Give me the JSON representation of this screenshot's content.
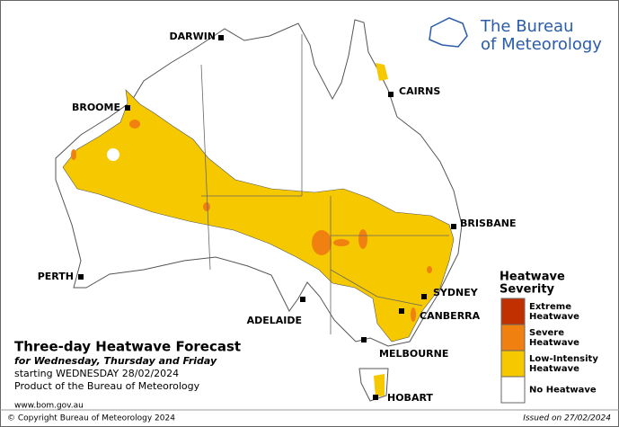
{
  "header": {
    "logo_line1": "The Bureau",
    "logo_line2": "of Meteorology"
  },
  "cities": [
    {
      "label": "DARWIN"
    },
    {
      "label": "CAIRNS"
    },
    {
      "label": "BROOME"
    },
    {
      "label": "BRISBANE"
    },
    {
      "label": "PERTH"
    },
    {
      "label": "SYDNEY"
    },
    {
      "label": "ADELAIDE"
    },
    {
      "label": "CANBERRA"
    },
    {
      "label": "MELBOURNE"
    },
    {
      "label": "HOBART"
    }
  ],
  "info": {
    "title": "Three-day Heatwave Forecast",
    "subtitle": "for Wednesday, Thursday and Friday",
    "starting": "starting WEDNESDAY 28/02/2024",
    "product": "Product of the Bureau of Meteorology",
    "website": "www.bom.gov.au"
  },
  "legend": {
    "title_lines": [
      "Heatwave",
      "Severity"
    ],
    "items": [
      {
        "label_lines": [
          "Extreme",
          "Heatwave"
        ],
        "color": "#c03000"
      },
      {
        "label_lines": [
          "Severe",
          "Heatwave"
        ],
        "color": "#f08010"
      },
      {
        "label_lines": [
          "Low-Intensity",
          "Heatwave"
        ],
        "color": "#f5c800"
      },
      {
        "label_lines": [
          "No Heatwave"
        ],
        "color": "#ffffff"
      }
    ]
  },
  "footer": {
    "copyright": "© Copyright Bureau of Meteorology 2024",
    "issued": "Issued on 27/02/2024"
  }
}
